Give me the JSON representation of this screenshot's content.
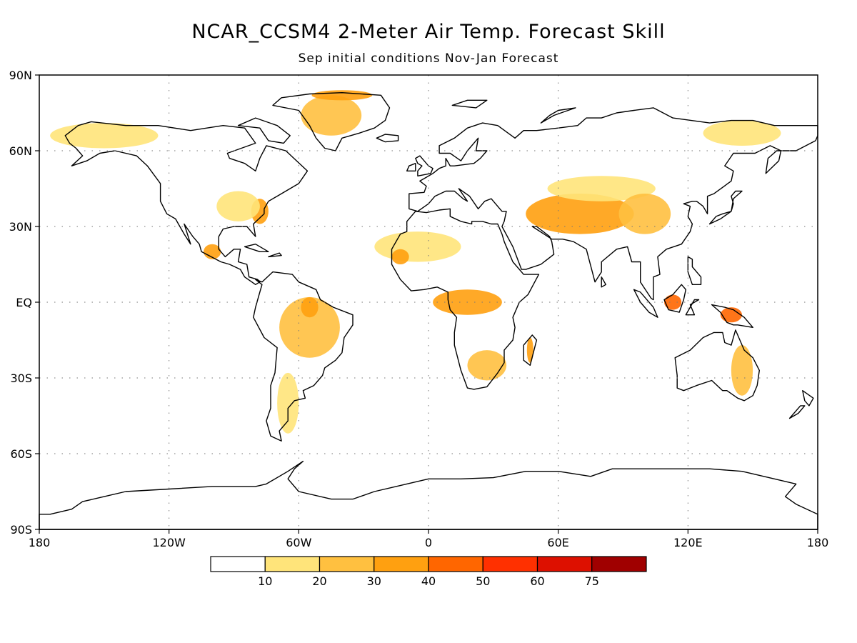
{
  "title": "NCAR_CCSM4 2-Meter Air Temp. Forecast Skill",
  "subtitle": "Sep initial conditions  Nov-Jan Forecast",
  "chart_data": {
    "type": "heatmap",
    "title": "NCAR_CCSM4 2-Meter Air Temp. Forecast Skill",
    "subtitle": "Sep initial conditions  Nov-Jan Forecast",
    "projection": "cylindrical-equidistant",
    "xlim": [
      -180,
      180
    ],
    "ylim": [
      -90,
      90
    ],
    "grid": true,
    "x_ticks": [
      {
        "value": -180,
        "label": "180"
      },
      {
        "value": -120,
        "label": "120W"
      },
      {
        "value": -60,
        "label": "60W"
      },
      {
        "value": 0,
        "label": "0"
      },
      {
        "value": 60,
        "label": "60E"
      },
      {
        "value": 120,
        "label": "120E"
      },
      {
        "value": 180,
        "label": "180"
      }
    ],
    "y_ticks": [
      {
        "value": 90,
        "label": "90N"
      },
      {
        "value": 60,
        "label": "60N"
      },
      {
        "value": 30,
        "label": "30N"
      },
      {
        "value": 0,
        "label": "EQ"
      },
      {
        "value": -30,
        "label": "30S"
      },
      {
        "value": -60,
        "label": "60S"
      },
      {
        "value": -90,
        "label": "90S"
      }
    ],
    "colorbar": {
      "placement": "bottom",
      "bins": [
        {
          "color": "#ffffff"
        },
        {
          "color": "#ffe47a"
        },
        {
          "color": "#ffc040"
        },
        {
          "color": "#ffa010"
        },
        {
          "color": "#ff6600"
        },
        {
          "color": "#ff3000"
        },
        {
          "color": "#dd1000"
        },
        {
          "color": "#a00000"
        }
      ],
      "labels": [
        "10",
        "20",
        "30",
        "40",
        "50",
        "60",
        "75"
      ]
    },
    "skill_regions": [
      {
        "lon": -150,
        "lat": 66,
        "rx": 25,
        "ry": 5,
        "level": 1
      },
      {
        "lon": -45,
        "lat": 74,
        "rx": 14,
        "ry": 8,
        "level": 2
      },
      {
        "lon": -40,
        "lat": 82,
        "rx": 14,
        "ry": 2,
        "level": 3
      },
      {
        "lon": -78,
        "lat": 36,
        "rx": 4,
        "ry": 5,
        "level": 3
      },
      {
        "lon": -100,
        "lat": 20,
        "rx": 4,
        "ry": 3,
        "level": 3
      },
      {
        "lon": -88,
        "lat": 38,
        "rx": 10,
        "ry": 6,
        "level": 1
      },
      {
        "lon": -55,
        "lat": -10,
        "rx": 14,
        "ry": 12,
        "level": 2
      },
      {
        "lon": -55,
        "lat": -2,
        "rx": 4,
        "ry": 4,
        "level": 3
      },
      {
        "lon": -65,
        "lat": -40,
        "rx": 5,
        "ry": 12,
        "level": 1
      },
      {
        "lon": -5,
        "lat": 22,
        "rx": 20,
        "ry": 6,
        "level": 1
      },
      {
        "lon": -13,
        "lat": 18,
        "rx": 4,
        "ry": 3,
        "level": 3
      },
      {
        "lon": 18,
        "lat": 0,
        "rx": 16,
        "ry": 5,
        "level": 3
      },
      {
        "lon": 27,
        "lat": -25,
        "rx": 9,
        "ry": 6,
        "level": 2
      },
      {
        "lon": 47,
        "lat": -19,
        "rx": 1.5,
        "ry": 5,
        "level": 3
      },
      {
        "lon": 70,
        "lat": 35,
        "rx": 25,
        "ry": 8,
        "level": 3
      },
      {
        "lon": 80,
        "lat": 45,
        "rx": 25,
        "ry": 5,
        "level": 1
      },
      {
        "lon": 100,
        "lat": 35,
        "rx": 12,
        "ry": 8,
        "level": 2
      },
      {
        "lon": 145,
        "lat": 67,
        "rx": 18,
        "ry": 5,
        "level": 1
      },
      {
        "lon": 113,
        "lat": 0,
        "rx": 4,
        "ry": 3,
        "level": 4
      },
      {
        "lon": 140,
        "lat": -5,
        "rx": 5,
        "ry": 3,
        "level": 4
      },
      {
        "lon": 145,
        "lat": -27,
        "rx": 5,
        "ry": 10,
        "level": 2
      }
    ]
  }
}
